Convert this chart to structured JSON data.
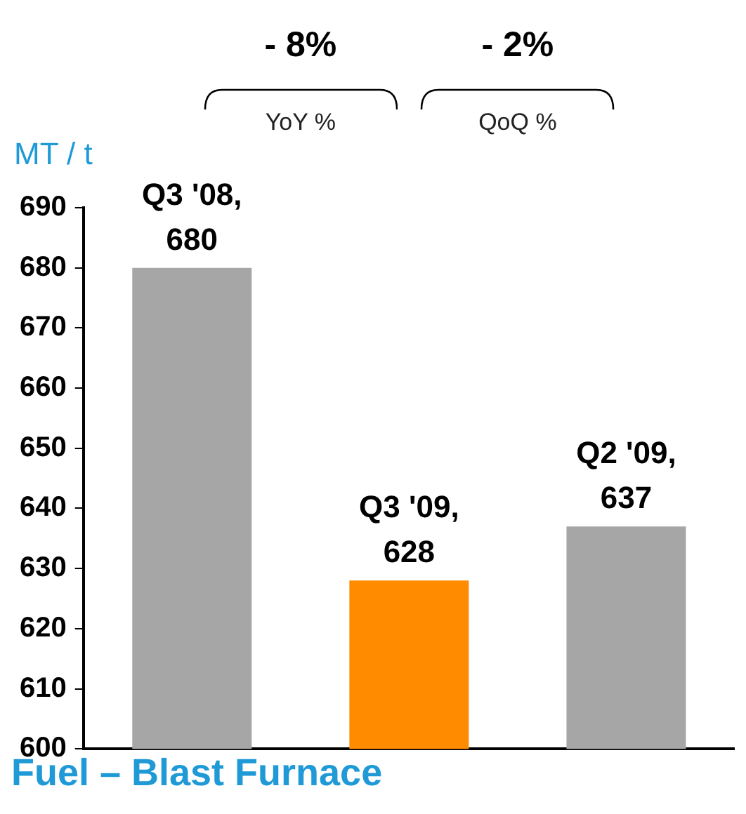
{
  "chart_data": {
    "type": "bar",
    "title": "Fuel – Blast Furnace",
    "ylabel": "MT / t",
    "categories": [
      null,
      null,
      null
    ],
    "values": [
      680,
      628,
      637
    ],
    "colors": [
      "#a6a6a6",
      "#ff8c00",
      "#a6a6a6"
    ],
    "ylim": [
      600,
      690
    ],
    "yticks": [
      600,
      610,
      620,
      630,
      640,
      650,
      660,
      670,
      680,
      690
    ],
    "annotations": [
      "- 8%",
      "YoY %",
      "- 2%",
      "QoQ %"
    ],
    "value_labels": [
      "Q3 '08, 680",
      "Q3 '09, 628",
      "Q2 '09, 637"
    ],
    "grid": false,
    "legend": false,
    "tick_labels": "y"
  }
}
